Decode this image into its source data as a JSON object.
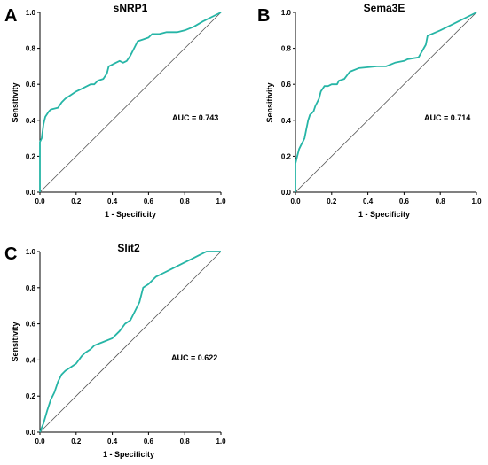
{
  "colors": {
    "curve": "#26b5a6",
    "diagonal": "#555555",
    "axis": "#000000"
  },
  "chart_data": [
    {
      "type": "line",
      "panel": "A",
      "title": "sNRP1",
      "xlabel": "1 - Specificity",
      "ylabel": "Sensitivity",
      "xlim": [
        0,
        1
      ],
      "ylim": [
        0,
        1
      ],
      "xticks": [
        "0.0",
        "0.2",
        "0.4",
        "0.6",
        "0.8",
        "1.0"
      ],
      "yticks": [
        "0.0",
        "0.2",
        "0.4",
        "0.6",
        "0.8",
        "1.0"
      ],
      "annotation": "AUC = 0.743",
      "reference_line": [
        [
          0,
          0
        ],
        [
          1,
          1
        ]
      ],
      "x": [
        0,
        0,
        0.01,
        0.02,
        0.03,
        0.05,
        0.06,
        0.1,
        0.12,
        0.14,
        0.17,
        0.2,
        0.24,
        0.28,
        0.3,
        0.32,
        0.35,
        0.37,
        0.38,
        0.4,
        0.42,
        0.44,
        0.46,
        0.48,
        0.5,
        0.52,
        0.54,
        0.57,
        0.6,
        0.62,
        0.66,
        0.7,
        0.76,
        0.8,
        0.85,
        0.9,
        1.0
      ],
      "y": [
        0,
        0.28,
        0.3,
        0.38,
        0.42,
        0.45,
        0.46,
        0.47,
        0.5,
        0.52,
        0.54,
        0.56,
        0.58,
        0.6,
        0.6,
        0.62,
        0.63,
        0.66,
        0.7,
        0.71,
        0.72,
        0.73,
        0.72,
        0.73,
        0.76,
        0.8,
        0.84,
        0.85,
        0.86,
        0.88,
        0.88,
        0.89,
        0.89,
        0.9,
        0.92,
        0.95,
        1.0
      ]
    },
    {
      "type": "line",
      "panel": "B",
      "title": "Sema3E",
      "xlabel": "1 - Specificity",
      "ylabel": "Sensitivity",
      "xlim": [
        0,
        1
      ],
      "ylim": [
        0,
        1
      ],
      "xticks": [
        "0.0",
        "0.2",
        "0.4",
        "0.6",
        "0.8",
        "1.0"
      ],
      "yticks": [
        "0.0",
        "0.2",
        "0.4",
        "0.6",
        "0.8",
        "1.0"
      ],
      "annotation": "AUC = 0.714",
      "reference_line": [
        [
          0,
          0
        ],
        [
          1,
          1
        ]
      ],
      "x": [
        0,
        0,
        0.01,
        0.02,
        0.03,
        0.04,
        0.05,
        0.06,
        0.07,
        0.08,
        0.09,
        0.1,
        0.11,
        0.12,
        0.13,
        0.14,
        0.16,
        0.18,
        0.2,
        0.23,
        0.24,
        0.27,
        0.3,
        0.35,
        0.45,
        0.5,
        0.55,
        0.6,
        0.62,
        0.68,
        0.72,
        0.73,
        0.8,
        0.9,
        1.0
      ],
      "y": [
        0,
        0.16,
        0.2,
        0.24,
        0.26,
        0.28,
        0.3,
        0.35,
        0.4,
        0.43,
        0.44,
        0.45,
        0.48,
        0.5,
        0.52,
        0.56,
        0.59,
        0.59,
        0.6,
        0.6,
        0.62,
        0.63,
        0.67,
        0.69,
        0.7,
        0.7,
        0.72,
        0.73,
        0.74,
        0.75,
        0.82,
        0.87,
        0.9,
        0.95,
        1.0
      ]
    },
    {
      "type": "line",
      "panel": "C",
      "title": "Slit2",
      "xlabel": "1 - Specificity",
      "ylabel": "Sensitivity",
      "xlim": [
        0,
        1
      ],
      "ylim": [
        0,
        1
      ],
      "xticks": [
        "0.0",
        "0.2",
        "0.4",
        "0.6",
        "0.8",
        "1.0"
      ],
      "yticks": [
        "0.0",
        "0.2",
        "0.4",
        "0.6",
        "0.8",
        "1.0"
      ],
      "annotation": "AUC = 0.622",
      "reference_line": [
        [
          0,
          0
        ],
        [
          1,
          1
        ]
      ],
      "x": [
        0,
        0.02,
        0.04,
        0.06,
        0.08,
        0.1,
        0.12,
        0.14,
        0.17,
        0.2,
        0.23,
        0.25,
        0.28,
        0.3,
        0.35,
        0.4,
        0.44,
        0.47,
        0.5,
        0.52,
        0.55,
        0.57,
        0.6,
        0.64,
        0.68,
        0.72,
        0.76,
        0.8,
        0.84,
        0.88,
        0.92,
        1.0
      ],
      "y": [
        0,
        0.05,
        0.12,
        0.18,
        0.22,
        0.28,
        0.32,
        0.34,
        0.36,
        0.38,
        0.42,
        0.44,
        0.46,
        0.48,
        0.5,
        0.52,
        0.56,
        0.6,
        0.62,
        0.66,
        0.72,
        0.8,
        0.82,
        0.86,
        0.88,
        0.9,
        0.92,
        0.94,
        0.96,
        0.98,
        1.0,
        1.0
      ]
    }
  ]
}
